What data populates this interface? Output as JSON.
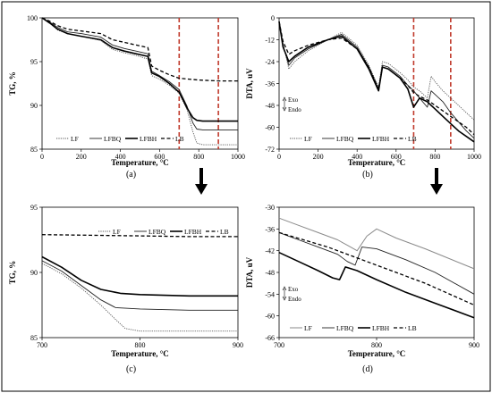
{
  "figure": {
    "colors": {
      "frame": "#000000",
      "marker": "#c0392b",
      "gray": "#8a8a8a"
    },
    "arrow_icons": [
      "down-arrow-icon",
      "down-arrow-icon"
    ]
  },
  "chart_data": [
    {
      "type": "line",
      "panel_label": "(a)",
      "ylabel": "TG, %",
      "xlabel": "Temperature, °C",
      "xlim": [
        0,
        1000
      ],
      "ylim": [
        85,
        100
      ],
      "xticks": [
        0,
        200,
        400,
        600,
        800,
        1000
      ],
      "yticks": [
        85,
        90,
        95,
        100
      ],
      "marker_lines": [
        700,
        900
      ],
      "legend_position": "bottom",
      "series": [
        {
          "name": "LF",
          "style": "dotted-gray",
          "x": [
            0,
            40,
            80,
            130,
            200,
            300,
            360,
            420,
            480,
            540,
            560,
            600,
            650,
            700,
            740,
            770,
            790,
            820,
            900,
            1000
          ],
          "y": [
            100,
            99.4,
            98.6,
            98.2,
            97.9,
            97.4,
            96.4,
            96.0,
            95.7,
            95.3,
            93.4,
            93.0,
            92.3,
            91.4,
            89.5,
            87.0,
            85.7,
            85.5,
            85.5,
            85.5
          ]
        },
        {
          "name": "LFBQ",
          "style": "solid-thin",
          "x": [
            0,
            40,
            80,
            130,
            200,
            300,
            360,
            420,
            480,
            540,
            560,
            600,
            650,
            700,
            740,
            770,
            790,
            820,
            900,
            1000
          ],
          "y": [
            100,
            99.5,
            98.9,
            98.4,
            98.2,
            97.8,
            96.9,
            96.5,
            96.2,
            95.9,
            93.9,
            93.4,
            92.7,
            91.8,
            89.9,
            88.0,
            87.3,
            87.2,
            87.2,
            87.2
          ]
        },
        {
          "name": "LFBH",
          "style": "solid-thick",
          "x": [
            0,
            40,
            80,
            130,
            200,
            300,
            360,
            420,
            480,
            540,
            560,
            600,
            650,
            700,
            740,
            770,
            790,
            820,
            900,
            1000
          ],
          "y": [
            100,
            99.4,
            98.7,
            98.2,
            97.9,
            97.5,
            96.6,
            96.2,
            95.9,
            95.6,
            93.7,
            93.3,
            92.5,
            91.5,
            89.7,
            88.6,
            88.3,
            88.2,
            88.2,
            88.2
          ]
        },
        {
          "name": "LB",
          "style": "dashed",
          "x": [
            0,
            40,
            80,
            130,
            200,
            300,
            360,
            420,
            480,
            540,
            560,
            600,
            650,
            700,
            800,
            900,
            1000
          ],
          "y": [
            100,
            99.6,
            99.1,
            98.7,
            98.5,
            98.2,
            97.5,
            97.2,
            96.9,
            96.6,
            94.5,
            94.0,
            93.5,
            93.1,
            92.9,
            92.8,
            92.8
          ]
        }
      ]
    },
    {
      "type": "line",
      "panel_label": "(b)",
      "ylabel": "DTA, uV",
      "xlabel": "Temperature, °C",
      "xlim": [
        0,
        1000
      ],
      "ylim": [
        -72,
        0
      ],
      "xticks": [
        0,
        200,
        400,
        600,
        800,
        1000
      ],
      "yticks": [
        0,
        -12,
        -24,
        -36,
        -48,
        -60,
        -72
      ],
      "marker_lines": [
        690,
        880
      ],
      "annotation_up": "Exo",
      "annotation_down": "Endo",
      "legend_position": "bottom",
      "series": [
        {
          "name": "LF",
          "style": "dotted-gray",
          "x": [
            0,
            20,
            50,
            80,
            150,
            250,
            320,
            400,
            460,
            510,
            530,
            560,
            620,
            660,
            690,
            720,
            760,
            780,
            800,
            840,
            880,
            920,
            960,
            1000
          ],
          "y": [
            -2,
            -14,
            -28,
            -24,
            -18,
            -12,
            -8,
            -15,
            -26,
            -38,
            -24,
            -25,
            -30,
            -34,
            -38,
            -40,
            -44,
            -32,
            -35,
            -40,
            -44,
            -48,
            -52,
            -56
          ]
        },
        {
          "name": "LFBQ",
          "style": "solid-thin",
          "x": [
            0,
            20,
            50,
            80,
            150,
            250,
            320,
            400,
            460,
            510,
            530,
            560,
            620,
            660,
            690,
            720,
            760,
            780,
            800,
            840,
            880,
            920,
            960,
            1000
          ],
          "y": [
            -2,
            -15,
            -26,
            -22,
            -17,
            -12,
            -9,
            -16,
            -27,
            -39,
            -26,
            -27,
            -32,
            -37,
            -40,
            -44,
            -49,
            -40,
            -42,
            -46,
            -52,
            -57,
            -62,
            -66
          ]
        },
        {
          "name": "LFBH",
          "style": "solid-thick",
          "x": [
            0,
            20,
            50,
            80,
            150,
            250,
            320,
            400,
            460,
            510,
            530,
            560,
            620,
            660,
            690,
            720,
            760,
            780,
            800,
            840,
            880,
            920,
            960,
            1000
          ],
          "y": [
            -2,
            -16,
            -24,
            -21,
            -16,
            -12,
            -10,
            -17,
            -28,
            -40,
            -27,
            -28,
            -33,
            -39,
            -49,
            -44,
            -46,
            -48,
            -50,
            -54,
            -58,
            -62,
            -65,
            -68
          ]
        },
        {
          "name": "LB",
          "style": "dashed",
          "x": [
            0,
            20,
            50,
            80,
            150,
            250,
            320,
            400,
            460,
            510,
            530,
            560,
            620,
            660,
            690,
            720,
            760,
            800,
            840,
            880,
            920,
            960,
            1000
          ],
          "y": [
            -2,
            -13,
            -20,
            -18,
            -15,
            -12,
            -11,
            -17,
            -27,
            -39,
            -27,
            -28,
            -33,
            -37,
            -41,
            -43,
            -45,
            -48,
            -51,
            -54,
            -57,
            -60,
            -64
          ]
        }
      ]
    },
    {
      "type": "line",
      "panel_label": "(c)",
      "ylabel": "TG, %",
      "xlabel": "Temperature, °C",
      "xlim": [
        700,
        900
      ],
      "ylim": [
        85,
        95
      ],
      "xticks": [
        700,
        800,
        900
      ],
      "yticks": [
        85,
        90,
        95
      ],
      "legend_position": "top",
      "series": [
        {
          "name": "LF",
          "style": "dotted-gray",
          "x": [
            700,
            720,
            740,
            760,
            775,
            785,
            800,
            850,
            900
          ],
          "y": [
            90.7,
            89.9,
            88.8,
            87.5,
            86.4,
            85.7,
            85.5,
            85.5,
            85.5
          ]
        },
        {
          "name": "LFBQ",
          "style": "solid-thin",
          "x": [
            700,
            720,
            740,
            760,
            775,
            800,
            850,
            900
          ],
          "y": [
            90.9,
            90.1,
            89.0,
            87.9,
            87.3,
            87.2,
            87.1,
            87.1
          ]
        },
        {
          "name": "LFBH",
          "style": "solid-thick",
          "x": [
            700,
            720,
            740,
            760,
            780,
            800,
            850,
            900
          ],
          "y": [
            91.2,
            90.4,
            89.4,
            88.7,
            88.4,
            88.3,
            88.2,
            88.2
          ]
        },
        {
          "name": "LB",
          "style": "dashed",
          "x": [
            700,
            750,
            800,
            850,
            900
          ],
          "y": [
            92.9,
            92.85,
            92.8,
            92.75,
            92.75
          ]
        }
      ]
    },
    {
      "type": "line",
      "panel_label": "(d)",
      "ylabel": "DTA, uV",
      "xlabel": "Temperature, °C",
      "xlim": [
        700,
        900
      ],
      "ylim": [
        -66,
        -30
      ],
      "xticks": [
        700,
        800,
        900
      ],
      "yticks": [
        -30,
        -36,
        -42,
        -48,
        -54,
        -60,
        -66
      ],
      "annotation_up": "Exo",
      "annotation_down": "Endo",
      "legend_position": "bottom",
      "series": [
        {
          "name": "LF",
          "style": "solid-gray",
          "x": [
            700,
            720,
            740,
            760,
            770,
            780,
            790,
            800,
            820,
            850,
            900
          ],
          "y": [
            -33,
            -35,
            -37,
            -39,
            -40.5,
            -42,
            -38,
            -36,
            -38.5,
            -41.5,
            -47
          ]
        },
        {
          "name": "LFBQ",
          "style": "solid-thin",
          "x": [
            700,
            720,
            740,
            760,
            770,
            778,
            785,
            800,
            830,
            860,
            900
          ],
          "y": [
            -37,
            -39,
            -41,
            -43,
            -45,
            -46,
            -41,
            -41.5,
            -44.5,
            -48,
            -54
          ]
        },
        {
          "name": "LFBH",
          "style": "solid-thick",
          "x": [
            700,
            720,
            740,
            755,
            762,
            768,
            780,
            800,
            830,
            860,
            900
          ],
          "y": [
            -42.5,
            -45,
            -47.5,
            -49.5,
            -50,
            -46.5,
            -47.5,
            -50,
            -53.5,
            -56.5,
            -60.5
          ]
        },
        {
          "name": "LB",
          "style": "dashed",
          "x": [
            700,
            750,
            800,
            850,
            900
          ],
          "y": [
            -37,
            -41,
            -46,
            -51,
            -57
          ]
        }
      ]
    }
  ]
}
